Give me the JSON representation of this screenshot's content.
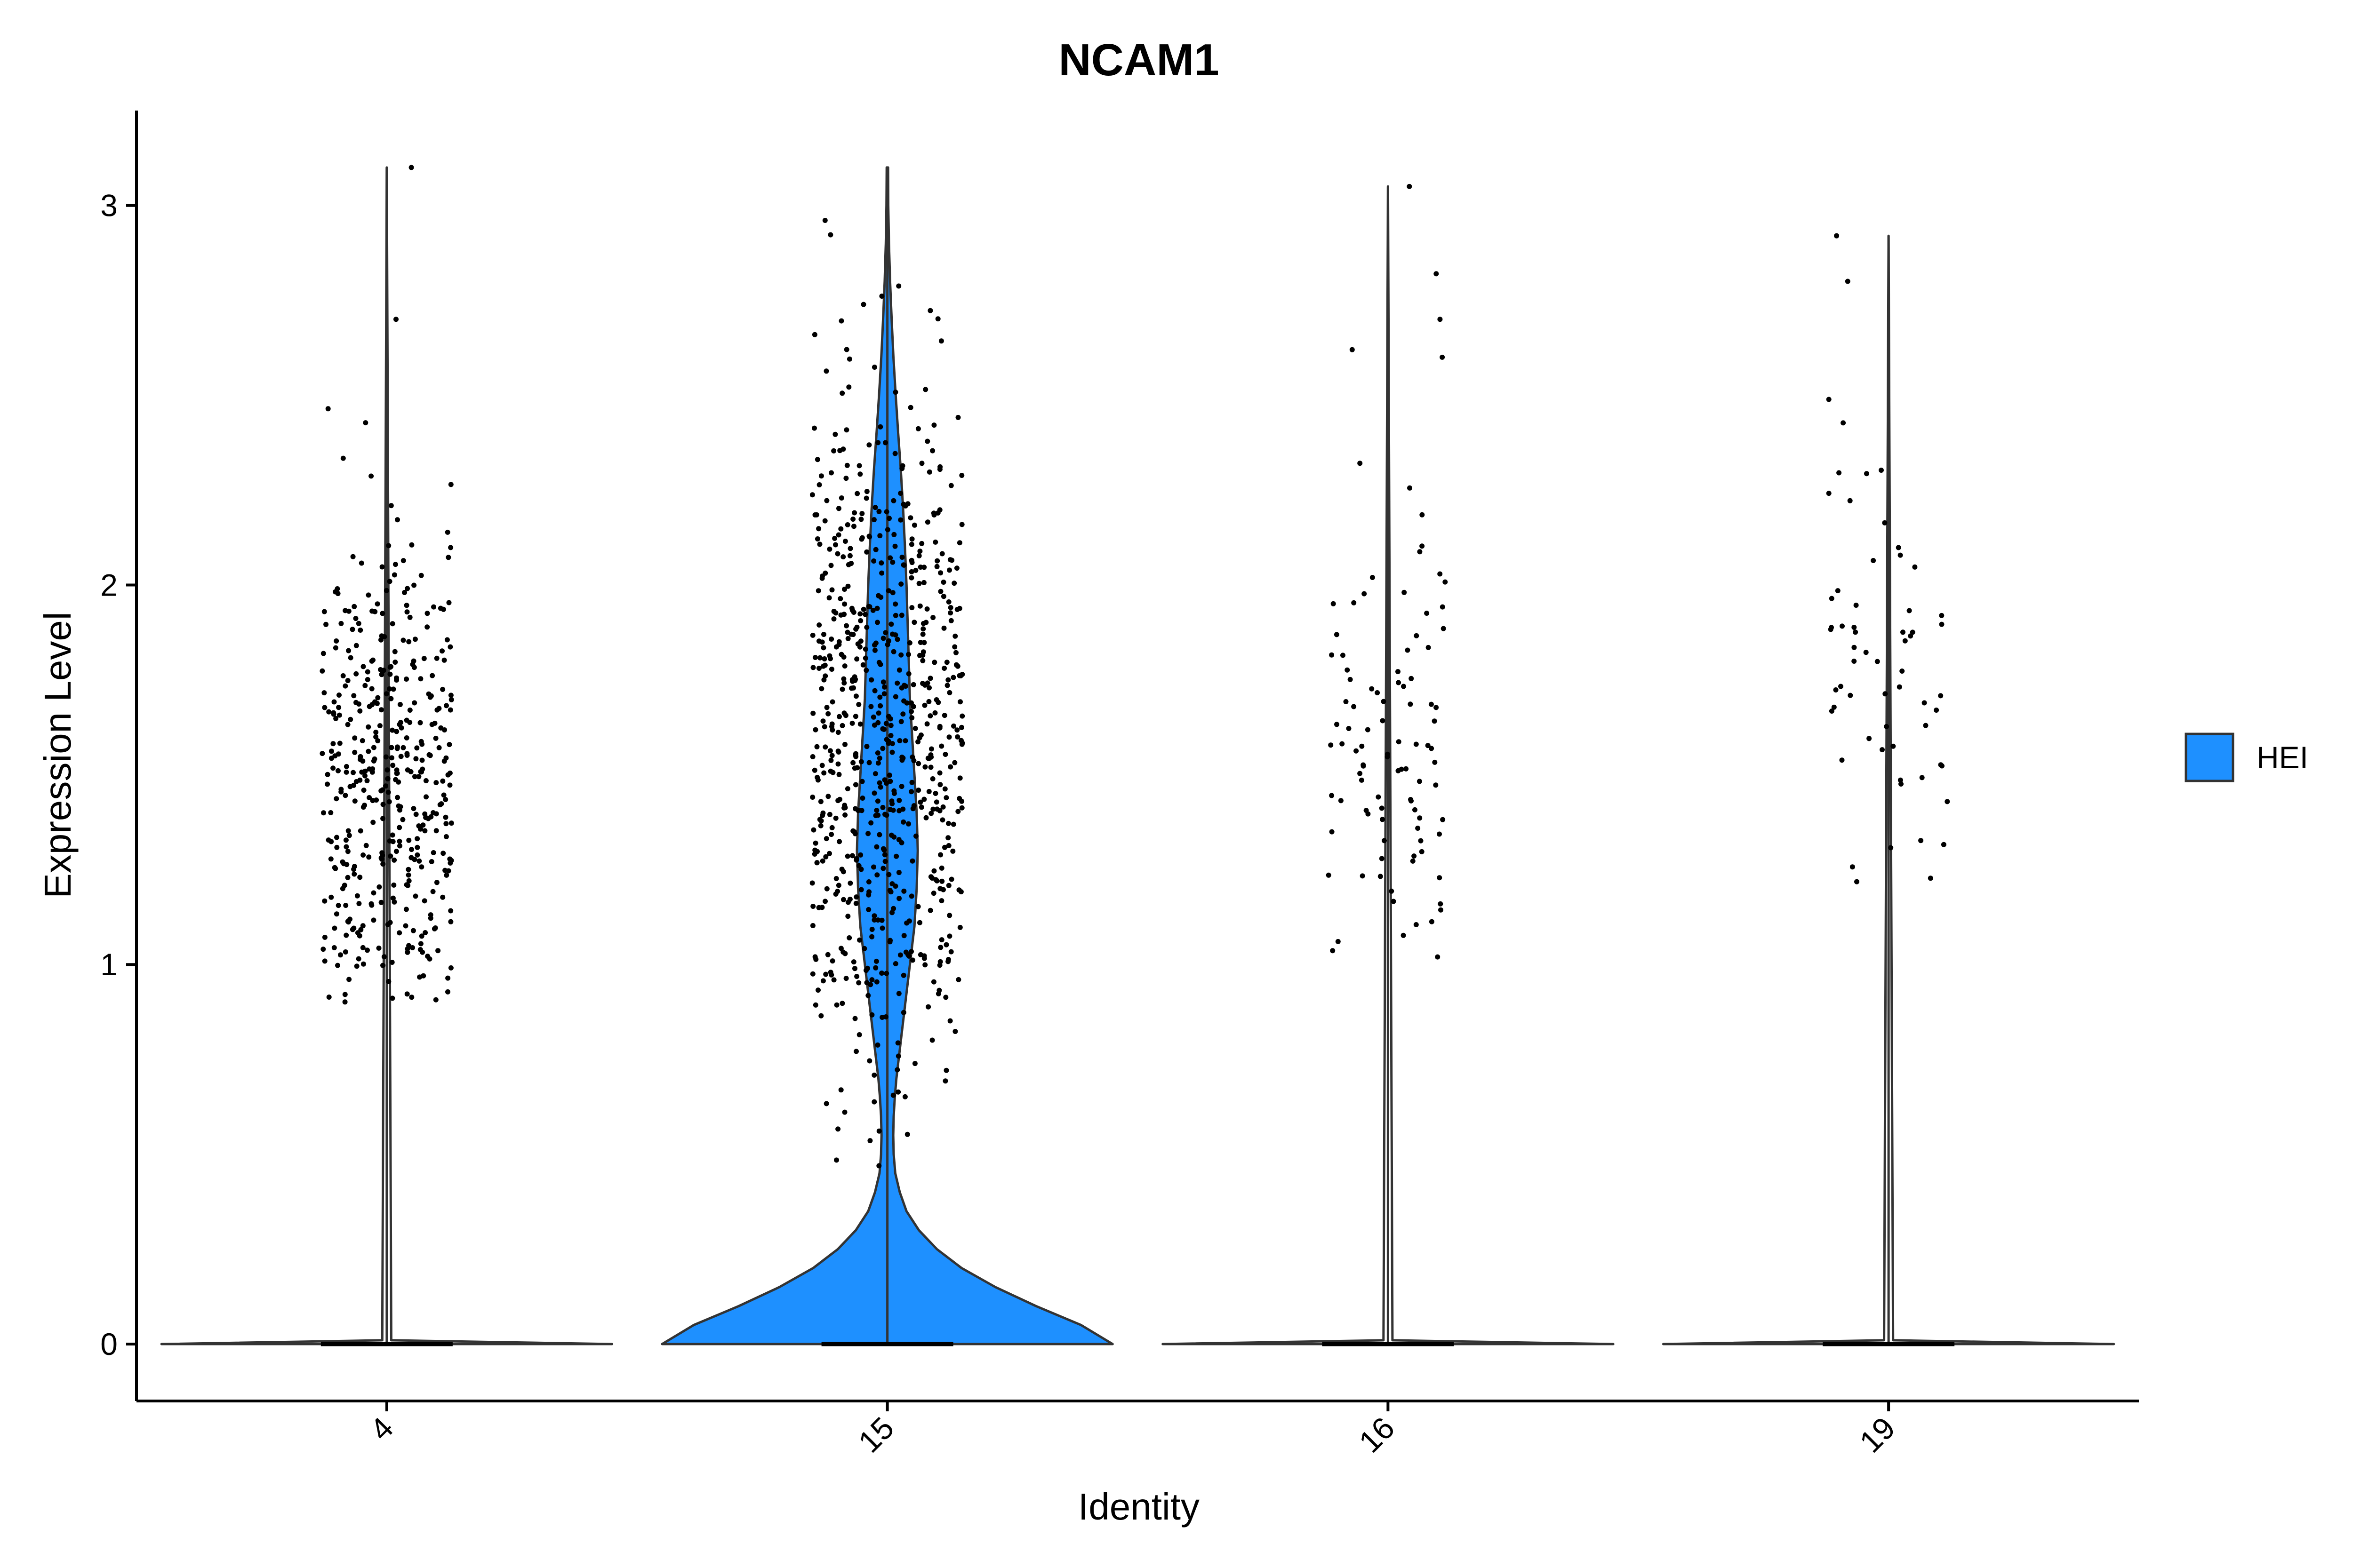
{
  "chart_data": {
    "type": "violin",
    "title": "NCAM1",
    "xlabel": "Identity",
    "ylabel": "Expression Level",
    "categories": [
      "4",
      "15",
      "16",
      "19"
    ],
    "ylim": [
      -0.15,
      3.25
    ],
    "yticks": [
      0,
      1,
      2,
      3
    ],
    "grid": false,
    "legend": {
      "position": "right",
      "entries": [
        {
          "name": "HEI",
          "color": "#1E90FF"
        }
      ]
    },
    "fill_color": "#1E90FF",
    "point_color": "#000000",
    "violins": [
      {
        "category": "4",
        "max": 3.1,
        "density": [
          [
            0,
            1.0
          ],
          [
            0.01,
            0.02
          ],
          [
            3.1,
            0.0
          ]
        ]
      },
      {
        "category": "15",
        "max": 3.1,
        "density": [
          [
            0.0,
            1.0
          ],
          [
            0.05,
            0.86
          ],
          [
            0.1,
            0.66
          ],
          [
            0.15,
            0.48
          ],
          [
            0.2,
            0.33
          ],
          [
            0.25,
            0.22
          ],
          [
            0.3,
            0.14
          ],
          [
            0.35,
            0.085
          ],
          [
            0.4,
            0.055
          ],
          [
            0.45,
            0.035
          ],
          [
            0.5,
            0.028
          ],
          [
            0.55,
            0.026
          ],
          [
            0.6,
            0.028
          ],
          [
            0.65,
            0.033
          ],
          [
            0.7,
            0.04
          ],
          [
            0.8,
            0.06
          ],
          [
            0.9,
            0.08
          ],
          [
            1.0,
            0.1
          ],
          [
            1.1,
            0.12
          ],
          [
            1.2,
            0.13
          ],
          [
            1.3,
            0.135
          ],
          [
            1.4,
            0.13
          ],
          [
            1.5,
            0.12
          ],
          [
            1.6,
            0.11
          ],
          [
            1.7,
            0.1
          ],
          [
            1.8,
            0.095
          ],
          [
            1.9,
            0.09
          ],
          [
            2.0,
            0.085
          ],
          [
            2.1,
            0.078
          ],
          [
            2.2,
            0.07
          ],
          [
            2.3,
            0.06
          ],
          [
            2.4,
            0.048
          ],
          [
            2.5,
            0.037
          ],
          [
            2.6,
            0.027
          ],
          [
            2.7,
            0.019
          ],
          [
            2.8,
            0.012
          ],
          [
            2.9,
            0.007
          ],
          [
            3.0,
            0.004
          ],
          [
            3.1,
            0.003
          ]
        ]
      },
      {
        "category": "16",
        "max": 3.05,
        "density": [
          [
            0,
            1.0
          ],
          [
            0.01,
            0.02
          ],
          [
            3.05,
            0.0
          ]
        ]
      },
      {
        "category": "19",
        "max": 2.92,
        "density": [
          [
            0,
            1.0
          ],
          [
            0.01,
            0.02
          ],
          [
            2.92,
            0.0
          ]
        ]
      }
    ],
    "points": [
      {
        "category": "4",
        "count": 430,
        "distribution": {
          "mean": 1.5,
          "sd": 0.33,
          "min": 0.9,
          "max": 2.56
        },
        "outliers": [
          2.7,
          3.1
        ],
        "jitter": 0.13
      },
      {
        "category": "15",
        "count": 720,
        "distribution": {
          "mean": 1.6,
          "sd": 0.45,
          "min": 0.45,
          "max": 3.1
        },
        "outliers": [],
        "jitter": 0.15
      },
      {
        "category": "16",
        "count": 95,
        "distribution": {
          "mean": 1.55,
          "sd": 0.3,
          "min": 1.0,
          "max": 2.35
        },
        "outliers": [
          2.6,
          2.62,
          2.7,
          2.82,
          3.05
        ],
        "jitter": 0.12
      },
      {
        "category": "19",
        "count": 60,
        "distribution": {
          "mean": 1.8,
          "sd": 0.33,
          "min": 1.2,
          "max": 2.5
        },
        "outliers": [
          2.8,
          2.92
        ],
        "jitter": 0.12
      }
    ]
  }
}
